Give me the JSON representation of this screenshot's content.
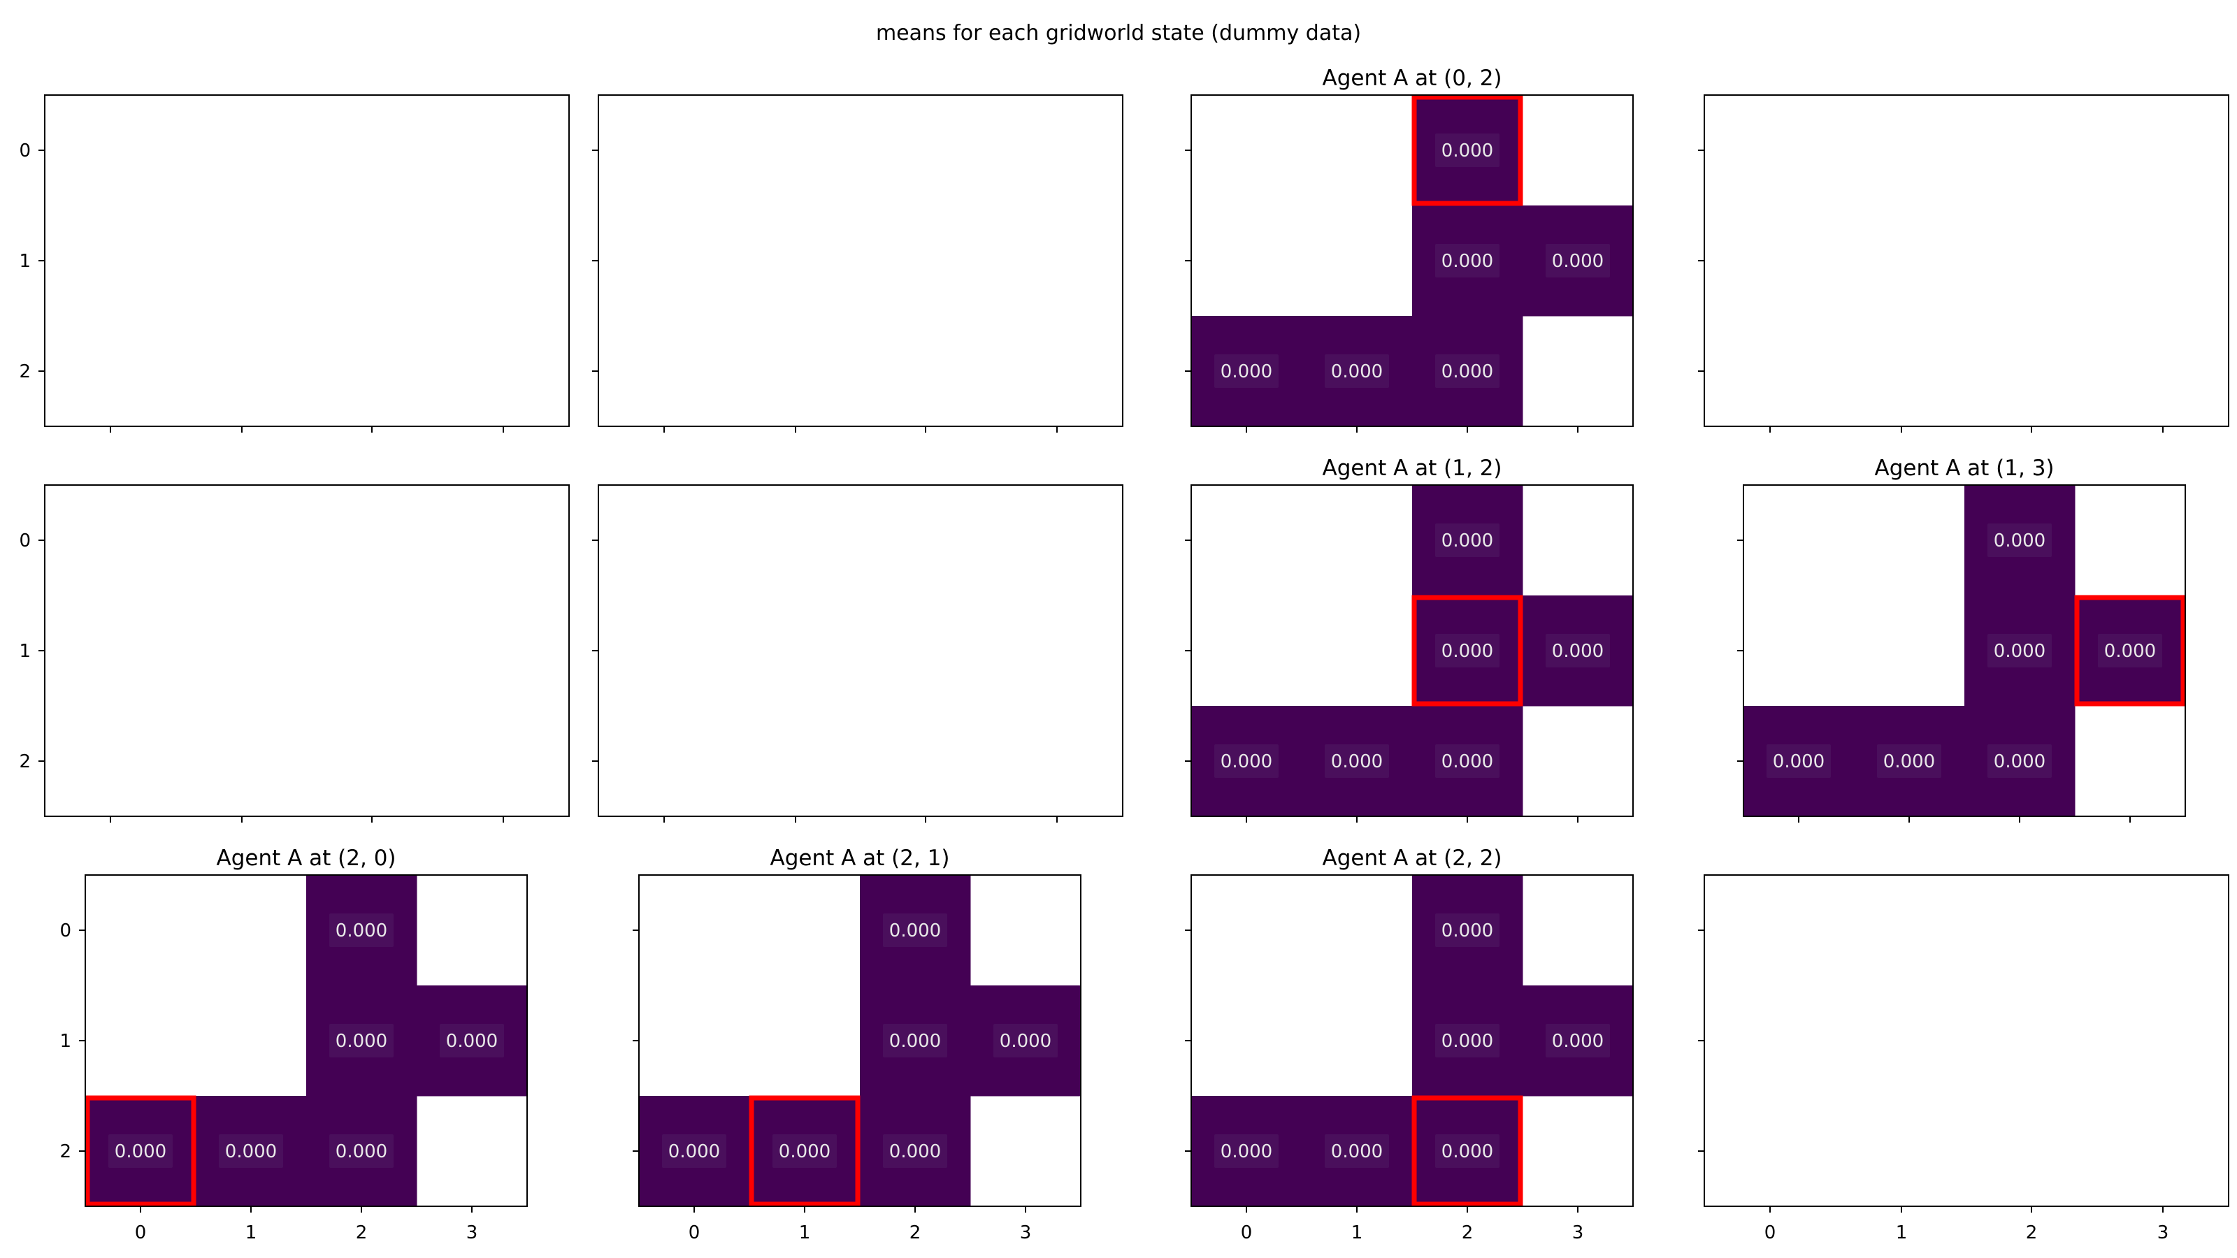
{
  "figure": {
    "title": "means for each gridworld state (dummy data)"
  },
  "chart_data": {
    "type": "heatmap",
    "grid_rows": 3,
    "grid_cols": 4,
    "x_ticks": [
      "0",
      "1",
      "2",
      "3"
    ],
    "y_ticks": [
      "0",
      "1",
      "2"
    ],
    "cell_color": "#440154",
    "label_box_color": "#4a0f5c",
    "agent_highlight_color": "#ff0000",
    "value_text_color": "#e8e8e8",
    "valid_cells": [
      [
        0,
        2
      ],
      [
        1,
        2
      ],
      [
        1,
        3
      ],
      [
        2,
        0
      ],
      [
        2,
        1
      ],
      [
        2,
        2
      ]
    ],
    "panels": [
      {
        "row": 0,
        "col": 0,
        "empty": true,
        "title": ""
      },
      {
        "row": 0,
        "col": 1,
        "empty": true,
        "title": ""
      },
      {
        "row": 0,
        "col": 2,
        "empty": false,
        "title": "Agent A at (0, 2)",
        "agent": [
          0,
          2
        ],
        "values": [
          {
            "cell": [
              0,
              2
            ],
            "label": "0.000"
          },
          {
            "cell": [
              1,
              2
            ],
            "label": "0.000"
          },
          {
            "cell": [
              1,
              3
            ],
            "label": "0.000"
          },
          {
            "cell": [
              2,
              0
            ],
            "label": "0.000"
          },
          {
            "cell": [
              2,
              1
            ],
            "label": "0.000"
          },
          {
            "cell": [
              2,
              2
            ],
            "label": "0.000"
          }
        ]
      },
      {
        "row": 0,
        "col": 3,
        "empty": true,
        "title": ""
      },
      {
        "row": 1,
        "col": 0,
        "empty": true,
        "title": ""
      },
      {
        "row": 1,
        "col": 1,
        "empty": true,
        "title": ""
      },
      {
        "row": 1,
        "col": 2,
        "empty": false,
        "title": "Agent A at (1, 2)",
        "agent": [
          1,
          2
        ],
        "values": [
          {
            "cell": [
              0,
              2
            ],
            "label": "0.000"
          },
          {
            "cell": [
              1,
              2
            ],
            "label": "0.000"
          },
          {
            "cell": [
              1,
              3
            ],
            "label": "0.000"
          },
          {
            "cell": [
              2,
              0
            ],
            "label": "0.000"
          },
          {
            "cell": [
              2,
              1
            ],
            "label": "0.000"
          },
          {
            "cell": [
              2,
              2
            ],
            "label": "0.000"
          }
        ]
      },
      {
        "row": 1,
        "col": 3,
        "empty": false,
        "title": "Agent A at (1, 3)",
        "agent": [
          1,
          3
        ],
        "values": [
          {
            "cell": [
              0,
              2
            ],
            "label": "0.000"
          },
          {
            "cell": [
              1,
              2
            ],
            "label": "0.000"
          },
          {
            "cell": [
              1,
              3
            ],
            "label": "0.000"
          },
          {
            "cell": [
              2,
              0
            ],
            "label": "0.000"
          },
          {
            "cell": [
              2,
              1
            ],
            "label": "0.000"
          },
          {
            "cell": [
              2,
              2
            ],
            "label": "0.000"
          }
        ]
      },
      {
        "row": 2,
        "col": 0,
        "empty": false,
        "title": "Agent A at (2, 0)",
        "agent": [
          2,
          0
        ],
        "values": [
          {
            "cell": [
              0,
              2
            ],
            "label": "0.000"
          },
          {
            "cell": [
              1,
              2
            ],
            "label": "0.000"
          },
          {
            "cell": [
              1,
              3
            ],
            "label": "0.000"
          },
          {
            "cell": [
              2,
              0
            ],
            "label": "0.000"
          },
          {
            "cell": [
              2,
              1
            ],
            "label": "0.000"
          },
          {
            "cell": [
              2,
              2
            ],
            "label": "0.000"
          }
        ]
      },
      {
        "row": 2,
        "col": 1,
        "empty": false,
        "title": "Agent A at (2, 1)",
        "agent": [
          2,
          1
        ],
        "values": [
          {
            "cell": [
              0,
              2
            ],
            "label": "0.000"
          },
          {
            "cell": [
              1,
              2
            ],
            "label": "0.000"
          },
          {
            "cell": [
              1,
              3
            ],
            "label": "0.000"
          },
          {
            "cell": [
              2,
              0
            ],
            "label": "0.000"
          },
          {
            "cell": [
              2,
              1
            ],
            "label": "0.000"
          },
          {
            "cell": [
              2,
              2
            ],
            "label": "0.000"
          }
        ]
      },
      {
        "row": 2,
        "col": 2,
        "empty": false,
        "title": "Agent A at (2, 2)",
        "agent": [
          2,
          2
        ],
        "values": [
          {
            "cell": [
              0,
              2
            ],
            "label": "0.000"
          },
          {
            "cell": [
              1,
              2
            ],
            "label": "0.000"
          },
          {
            "cell": [
              1,
              3
            ],
            "label": "0.000"
          },
          {
            "cell": [
              2,
              0
            ],
            "label": "0.000"
          },
          {
            "cell": [
              2,
              1
            ],
            "label": "0.000"
          },
          {
            "cell": [
              2,
              2
            ],
            "label": "0.000"
          }
        ]
      },
      {
        "row": 2,
        "col": 3,
        "empty": true,
        "title": ""
      }
    ]
  }
}
